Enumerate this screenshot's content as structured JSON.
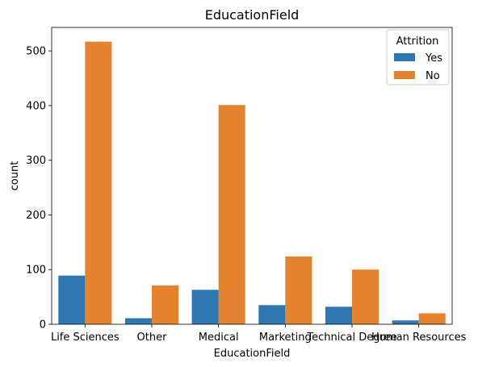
{
  "chart_data": {
    "type": "bar",
    "title": "EducationField",
    "xlabel": "EducationField",
    "ylabel": "count",
    "categories": [
      "Life Sciences",
      "Other",
      "Medical",
      "Marketing",
      "Technical Degree",
      "Human Resources"
    ],
    "series": [
      {
        "name": "Yes",
        "color": "#2f77b0",
        "values": [
          89,
          11,
          63,
          35,
          32,
          7
        ]
      },
      {
        "name": "No",
        "color": "#e5822d",
        "values": [
          517,
          71,
          401,
          124,
          100,
          20
        ]
      }
    ],
    "ylim": [
      0,
      543
    ],
    "yticks": [
      0,
      100,
      200,
      300,
      400,
      500
    ],
    "legend": {
      "title": "Attrition",
      "position": "top-right"
    },
    "grid": false
  }
}
